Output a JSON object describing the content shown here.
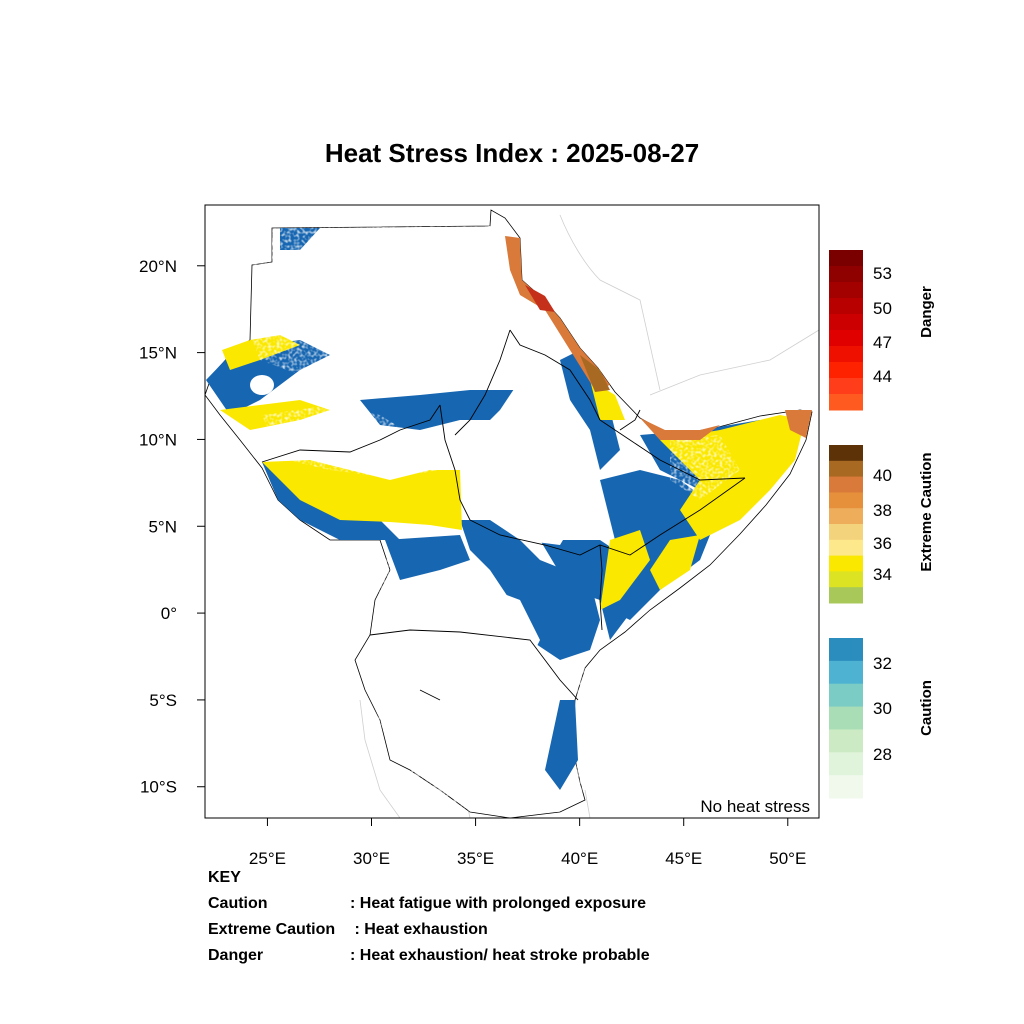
{
  "title": "Heat Stress Index : 2025-08-27",
  "map": {
    "region": "Greater Horn of Africa",
    "lon_range": [
      22,
      51.5
    ],
    "lat_range": [
      -11.8,
      23.5
    ],
    "x_ticks": [
      {
        "value": 25,
        "label": "25°E"
      },
      {
        "value": 30,
        "label": "30°E"
      },
      {
        "value": 35,
        "label": "35°E"
      },
      {
        "value": 40,
        "label": "40°E"
      },
      {
        "value": 45,
        "label": "45°E"
      },
      {
        "value": 50,
        "label": "50°E"
      }
    ],
    "y_ticks": [
      {
        "value": 20,
        "label": "20°N"
      },
      {
        "value": 15,
        "label": "15°N"
      },
      {
        "value": 10,
        "label": "10°N"
      },
      {
        "value": 5,
        "label": "5°N"
      },
      {
        "value": 0,
        "label": "0°"
      },
      {
        "value": -5,
        "label": "5°S"
      },
      {
        "value": -10,
        "label": "10°S"
      }
    ],
    "no_stress_label": "No heat stress"
  },
  "legend": {
    "danger": {
      "title": "Danger",
      "labels": [
        "53",
        "50",
        "47",
        "44"
      ],
      "colors": [
        "#7a0000",
        "#8f0000",
        "#a30000",
        "#b80000",
        "#cc0000",
        "#e00000",
        "#f01000",
        "#ff2200",
        "#ff3d1a",
        "#ff5a1f"
      ]
    },
    "extreme_caution": {
      "title": "Extreme Caution",
      "labels": [
        "40",
        "38",
        "36",
        "34"
      ],
      "colors": [
        "#5c3206",
        "#a86a23",
        "#d9793a",
        "#e6903c",
        "#eead5a",
        "#f4d37d",
        "#fde98c",
        "#fbe800",
        "#dbe323",
        "#a8c95a"
      ]
    },
    "caution": {
      "title": "Caution",
      "labels": [
        "32",
        "30",
        "28"
      ],
      "colors": [
        "#2b8cbe",
        "#4eb3d3",
        "#7bccc4",
        "#a8ddb5",
        "#ccebc5",
        "#e0f3db",
        "#f0f9ec"
      ]
    }
  },
  "key": {
    "heading": "KEY",
    "rows": [
      {
        "term": "Caution",
        "desc": ": Heat fatigue with prolonged exposure"
      },
      {
        "term": "Extreme Caution",
        "desc": " : Heat exhaustion"
      },
      {
        "term": "Danger",
        "desc": ": Heat exhaustion/ heat stroke probable"
      }
    ]
  },
  "colors": {
    "sahel_orange": "#e6a060",
    "desert_core": "#d9793a",
    "yellow": "#fbe800",
    "blue": "#1766b1",
    "teal": "#7bccc4",
    "light_green": "#ccebc5",
    "dark_red": "#c4301a"
  }
}
